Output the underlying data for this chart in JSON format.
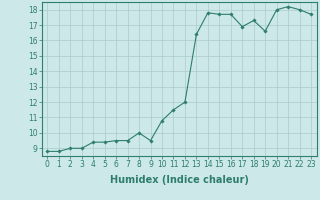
{
  "x": [
    0,
    1,
    2,
    3,
    4,
    5,
    6,
    7,
    8,
    9,
    10,
    11,
    12,
    13,
    14,
    15,
    16,
    17,
    18,
    19,
    20,
    21,
    22,
    23
  ],
  "y": [
    8.8,
    8.8,
    9.0,
    9.0,
    9.4,
    9.4,
    9.5,
    9.5,
    10.0,
    9.5,
    10.8,
    11.5,
    12.0,
    16.4,
    17.8,
    17.7,
    17.7,
    16.9,
    17.3,
    16.6,
    18.0,
    18.2,
    18.0,
    17.7
  ],
  "line_color": "#2e7d6e",
  "marker_color": "#2e7d6e",
  "bg_color": "#cce8e8",
  "grid_color": "#aacccc",
  "xlabel": "Humidex (Indice chaleur)",
  "xlim": [
    -0.5,
    23.5
  ],
  "ylim": [
    8.5,
    18.5
  ],
  "yticks": [
    9,
    10,
    11,
    12,
    13,
    14,
    15,
    16,
    17,
    18
  ],
  "xticks": [
    0,
    1,
    2,
    3,
    4,
    5,
    6,
    7,
    8,
    9,
    10,
    11,
    12,
    13,
    14,
    15,
    16,
    17,
    18,
    19,
    20,
    21,
    22,
    23
  ],
  "tick_label_fontsize": 5.5,
  "xlabel_fontsize": 7.0,
  "line_width": 0.8,
  "marker_size": 1.8
}
